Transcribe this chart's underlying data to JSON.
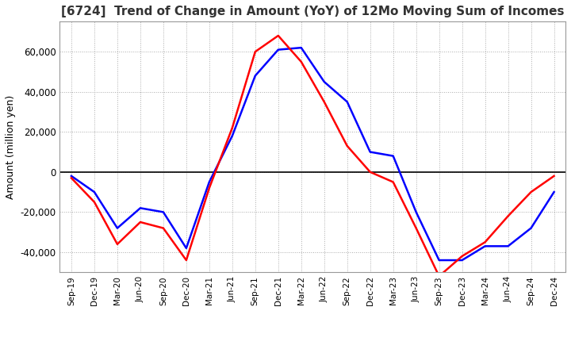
{
  "title": "[6724]  Trend of Change in Amount (YoY) of 12Mo Moving Sum of Incomes",
  "ylabel": "Amount (million yen)",
  "ylim": [
    -50000,
    75000
  ],
  "yticks": [
    -40000,
    -20000,
    0,
    20000,
    40000,
    60000
  ],
  "x_labels": [
    "Sep-19",
    "Dec-19",
    "Mar-20",
    "Jun-20",
    "Sep-20",
    "Dec-20",
    "Mar-21",
    "Jun-21",
    "Sep-21",
    "Dec-21",
    "Mar-22",
    "Jun-22",
    "Sep-22",
    "Dec-22",
    "Mar-23",
    "Jun-23",
    "Sep-23",
    "Dec-23",
    "Mar-24",
    "Jun-24",
    "Sep-24",
    "Dec-24"
  ],
  "ordinary_income": [
    -2000,
    -10000,
    -28000,
    -18000,
    -20000,
    -38000,
    -5000,
    18000,
    48000,
    61000,
    62000,
    45000,
    35000,
    10000,
    8000,
    -20000,
    -44000,
    -44000,
    -37000,
    -37000,
    -28000,
    -10000
  ],
  "net_income": [
    -3000,
    -15000,
    -36000,
    -25000,
    -28000,
    -44000,
    -8000,
    22000,
    60000,
    68000,
    55000,
    35000,
    13000,
    0,
    -5000,
    -28000,
    -52000,
    -42000,
    -35000,
    -22000,
    -10000,
    -2000
  ],
  "ordinary_color": "#0000ff",
  "net_color": "#ff0000",
  "background_color": "#ffffff",
  "grid_color": "#aaaaaa",
  "title_color": "#333333",
  "line_width": 1.8
}
